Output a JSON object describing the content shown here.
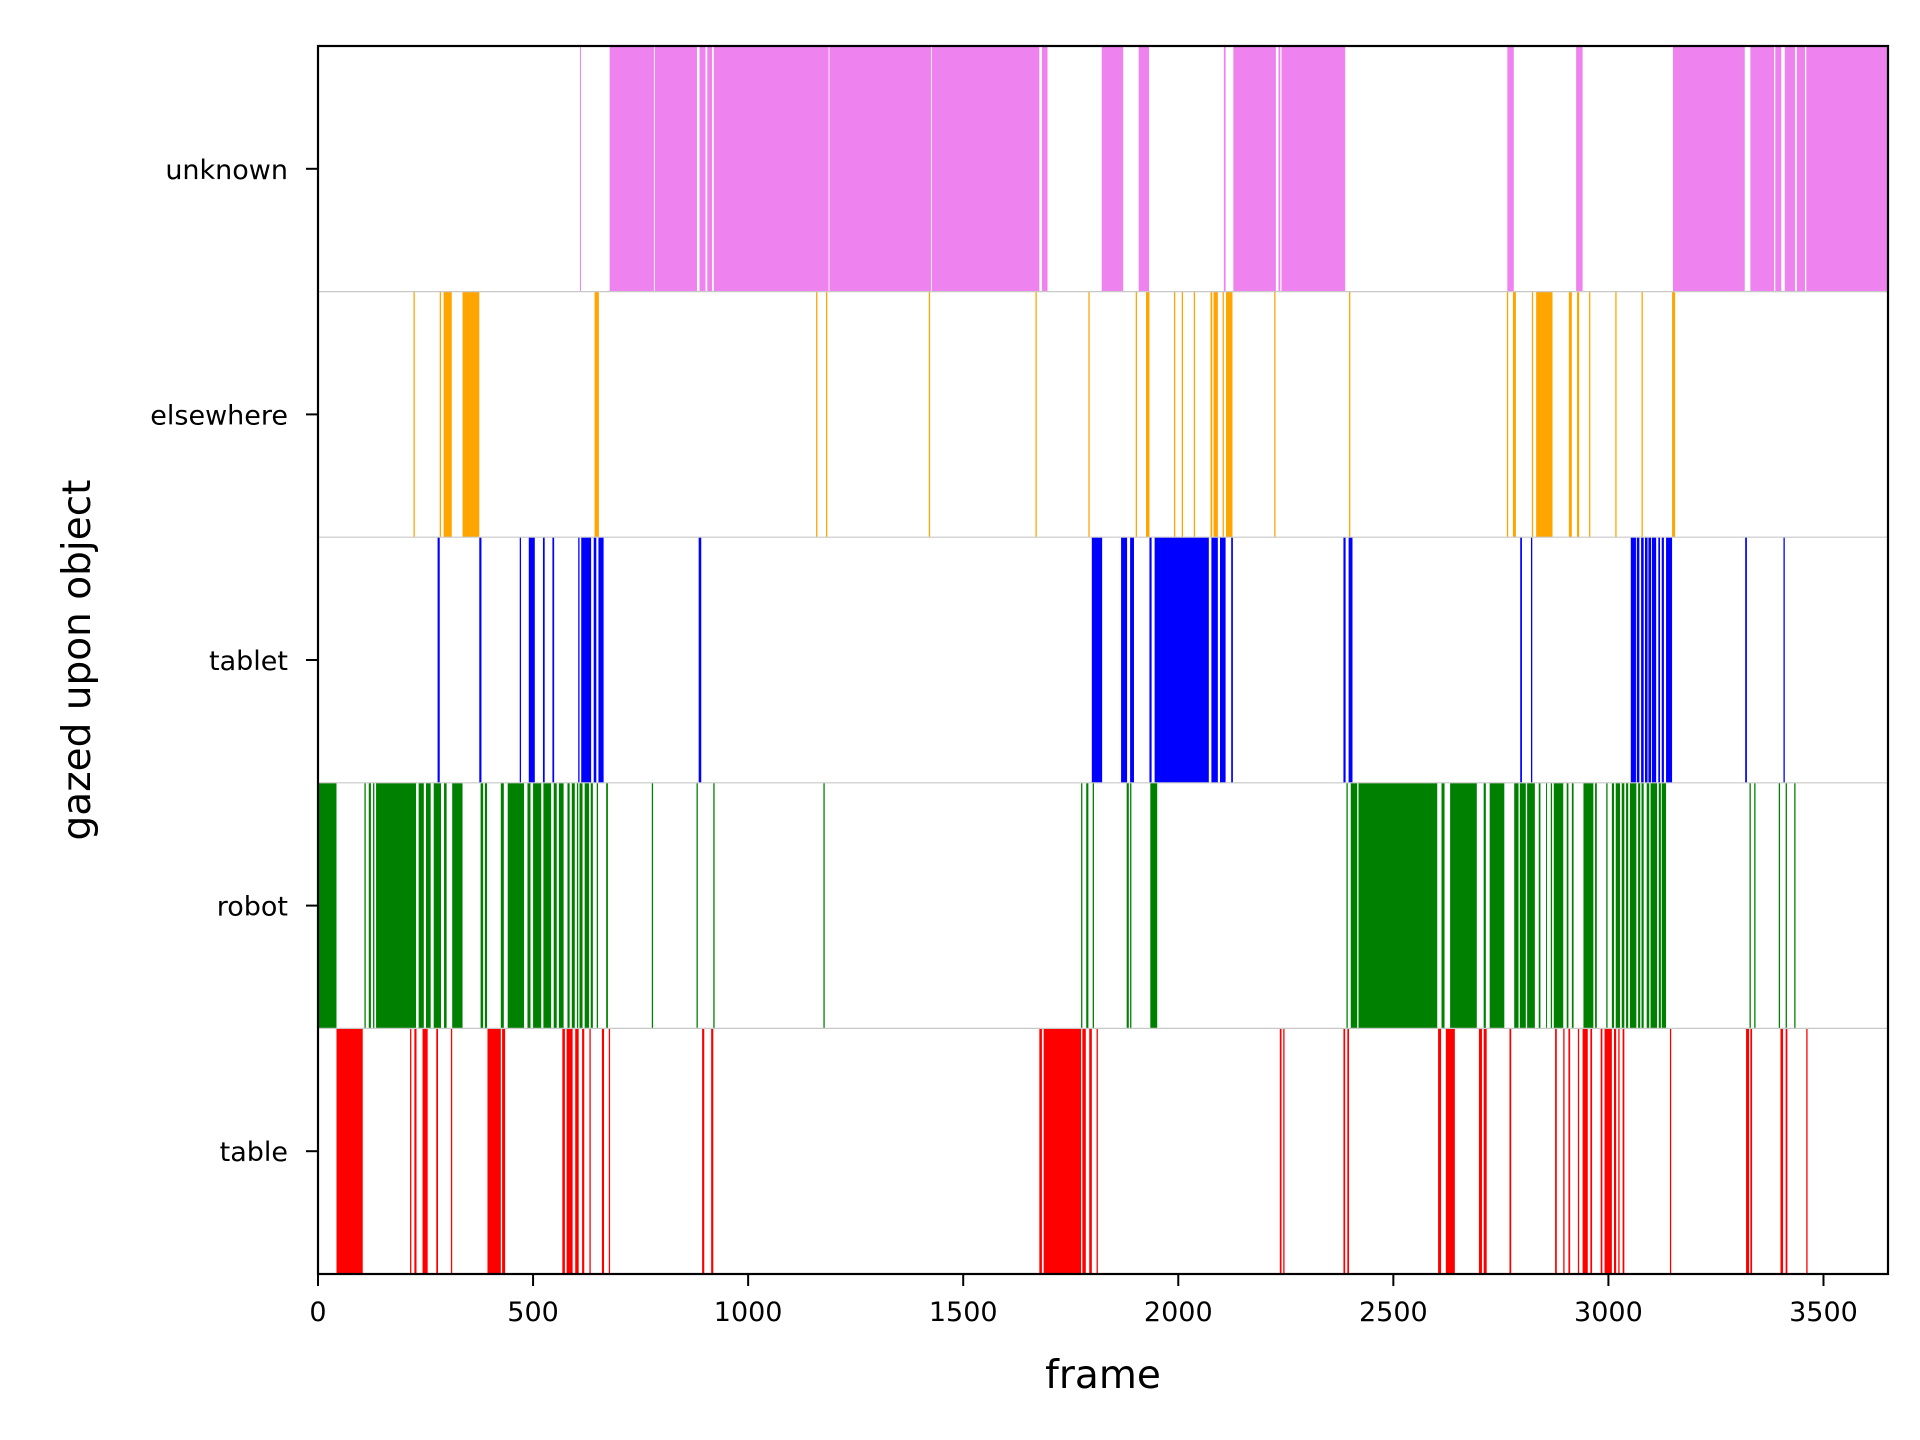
{
  "chart_data": {
    "type": "event-raster",
    "title": "",
    "xlabel": "frame",
    "ylabel": "gazed upon object",
    "xlim": [
      0,
      3650
    ],
    "xticks": [
      0,
      500,
      1000,
      1500,
      2000,
      2500,
      3000,
      3500
    ],
    "xtick_labels": [
      "0",
      "500",
      "1000",
      "1500",
      "2000",
      "2500",
      "3000",
      "3500"
    ],
    "categories": [
      "unknown",
      "elsewhere",
      "tablet",
      "robot",
      "table"
    ],
    "grid": "row separators only",
    "series": [
      {
        "name": "unknown",
        "color": "#ee82ee",
        "intervals": [
          [
            609,
            611
          ],
          [
            678,
            781
          ],
          [
            783,
            881
          ],
          [
            887,
            901
          ],
          [
            905,
            916
          ],
          [
            920,
            1187
          ],
          [
            1189,
            1425
          ],
          [
            1427,
            1677
          ],
          [
            1683,
            1696
          ],
          [
            1822,
            1872
          ],
          [
            1908,
            1932
          ],
          [
            2106,
            2110
          ],
          [
            2128,
            2227
          ],
          [
            2233,
            2237
          ],
          [
            2240,
            2388
          ],
          [
            2765,
            2780
          ],
          [
            2925,
            2940
          ],
          [
            3150,
            3317
          ],
          [
            3330,
            3385
          ],
          [
            3388,
            3402
          ],
          [
            3410,
            3434
          ],
          [
            3438,
            3457
          ],
          [
            3460,
            3650
          ]
        ]
      },
      {
        "name": "elsewhere",
        "color": "#ffa500",
        "intervals": [
          [
            222,
            225
          ],
          [
            283,
            286
          ],
          [
            292,
            311
          ],
          [
            336,
            375
          ],
          [
            643,
            653
          ],
          [
            1158,
            1161
          ],
          [
            1181,
            1184
          ],
          [
            1420,
            1423
          ],
          [
            1668,
            1671
          ],
          [
            1791,
            1794
          ],
          [
            1901,
            1904
          ],
          [
            1925,
            1933
          ],
          [
            1990,
            1993
          ],
          [
            2008,
            2011
          ],
          [
            2036,
            2039
          ],
          [
            2075,
            2079
          ],
          [
            2082,
            2092
          ],
          [
            2103,
            2106
          ],
          [
            2111,
            2126
          ],
          [
            2223,
            2226
          ],
          [
            2397,
            2400
          ],
          [
            2764,
            2767
          ],
          [
            2778,
            2785
          ],
          [
            2822,
            2825
          ],
          [
            2832,
            2870
          ],
          [
            2908,
            2915
          ],
          [
            2927,
            2932
          ],
          [
            2955,
            2958
          ],
          [
            3016,
            3019
          ],
          [
            3077,
            3080
          ],
          [
            3148,
            3155
          ]
        ]
      },
      {
        "name": "tablet",
        "color": "#0000ff",
        "intervals": [
          [
            278,
            283
          ],
          [
            375,
            380
          ],
          [
            469,
            472
          ],
          [
            490,
            504
          ],
          [
            523,
            527
          ],
          [
            545,
            549
          ],
          [
            605,
            608
          ],
          [
            612,
            635
          ],
          [
            641,
            647
          ],
          [
            652,
            664
          ],
          [
            885,
            891
          ],
          [
            1799,
            1823
          ],
          [
            1867,
            1881
          ],
          [
            1888,
            1897
          ],
          [
            1933,
            1938
          ],
          [
            1945,
            2071
          ],
          [
            2077,
            2092
          ],
          [
            2097,
            2110
          ],
          [
            2123,
            2127
          ],
          [
            2384,
            2389
          ],
          [
            2396,
            2405
          ],
          [
            2795,
            2799
          ],
          [
            2820,
            2823
          ],
          [
            3052,
            3064
          ],
          [
            3066,
            3072
          ],
          [
            3076,
            3082
          ],
          [
            3085,
            3091
          ],
          [
            3093,
            3099
          ],
          [
            3101,
            3111
          ],
          [
            3116,
            3120
          ],
          [
            3124,
            3129
          ],
          [
            3134,
            3148
          ],
          [
            3318,
            3322
          ],
          [
            3407,
            3410
          ]
        ]
      },
      {
        "name": "robot",
        "color": "#008000",
        "intervals": [
          [
            0,
            43
          ],
          [
            108,
            111
          ],
          [
            118,
            123
          ],
          [
            128,
            131
          ],
          [
            135,
            228
          ],
          [
            234,
            246
          ],
          [
            251,
            262
          ],
          [
            269,
            286
          ],
          [
            293,
            299
          ],
          [
            312,
            336
          ],
          [
            378,
            384
          ],
          [
            388,
            393
          ],
          [
            425,
            432
          ],
          [
            441,
            479
          ],
          [
            487,
            494
          ],
          [
            500,
            519
          ],
          [
            524,
            542
          ],
          [
            548,
            555
          ],
          [
            560,
            571
          ],
          [
            580,
            585
          ],
          [
            590,
            597
          ],
          [
            602,
            605
          ],
          [
            608,
            615
          ],
          [
            620,
            630
          ],
          [
            634,
            639
          ],
          [
            648,
            651
          ],
          [
            670,
            674
          ],
          [
            776,
            779
          ],
          [
            880,
            883
          ],
          [
            919,
            922
          ],
          [
            1175,
            1178
          ],
          [
            1774,
            1777
          ],
          [
            1786,
            1791
          ],
          [
            1801,
            1804
          ],
          [
            1880,
            1885
          ],
          [
            1888,
            1891
          ],
          [
            1935,
            1951
          ],
          [
            2391,
            2394
          ],
          [
            2401,
            2416
          ],
          [
            2419,
            2602
          ],
          [
            2612,
            2619
          ],
          [
            2632,
            2694
          ],
          [
            2710,
            2715
          ],
          [
            2724,
            2758
          ],
          [
            2781,
            2791
          ],
          [
            2794,
            2808
          ],
          [
            2811,
            2829
          ],
          [
            2838,
            2842
          ],
          [
            2855,
            2857
          ],
          [
            2866,
            2869
          ],
          [
            2873,
            2895
          ],
          [
            2903,
            2907
          ],
          [
            2915,
            2919
          ],
          [
            2942,
            2965
          ],
          [
            2969,
            2973
          ],
          [
            2995,
            2998
          ],
          [
            3008,
            3013
          ],
          [
            3017,
            3027
          ],
          [
            3031,
            3037
          ],
          [
            3041,
            3046
          ],
          [
            3050,
            3065
          ],
          [
            3069,
            3074
          ],
          [
            3077,
            3082
          ],
          [
            3089,
            3095
          ],
          [
            3098,
            3113
          ],
          [
            3117,
            3122
          ],
          [
            3124,
            3134
          ],
          [
            3328,
            3331
          ],
          [
            3339,
            3342
          ],
          [
            3396,
            3399
          ],
          [
            3412,
            3415
          ],
          [
            3432,
            3435
          ]
        ]
      },
      {
        "name": "table",
        "color": "#ff0000",
        "intervals": [
          [
            43,
            104
          ],
          [
            214,
            217
          ],
          [
            224,
            229
          ],
          [
            243,
            255
          ],
          [
            275,
            279
          ],
          [
            309,
            312
          ],
          [
            394,
            425
          ],
          [
            428,
            435
          ],
          [
            568,
            574
          ],
          [
            578,
            592
          ],
          [
            598,
            606
          ],
          [
            614,
            619
          ],
          [
            631,
            634
          ],
          [
            660,
            665
          ],
          [
            676,
            679
          ],
          [
            893,
            898
          ],
          [
            914,
            919
          ],
          [
            1677,
            1683
          ],
          [
            1687,
            1774
          ],
          [
            1777,
            1785
          ],
          [
            1793,
            1799
          ],
          [
            1810,
            1813
          ],
          [
            2236,
            2240
          ],
          [
            2244,
            2247
          ],
          [
            2384,
            2388
          ],
          [
            2393,
            2397
          ],
          [
            2604,
            2611
          ],
          [
            2622,
            2643
          ],
          [
            2699,
            2706
          ],
          [
            2710,
            2717
          ],
          [
            2770,
            2774
          ],
          [
            2876,
            2880
          ],
          [
            2895,
            2898
          ],
          [
            2907,
            2911
          ],
          [
            2929,
            2932
          ],
          [
            2940,
            2952
          ],
          [
            2958,
            2962
          ],
          [
            2982,
            2986
          ],
          [
            2991,
            3008
          ],
          [
            3013,
            3018
          ],
          [
            3023,
            3026
          ],
          [
            3033,
            3037
          ],
          [
            3143,
            3146
          ],
          [
            3320,
            3327
          ],
          [
            3330,
            3334
          ],
          [
            3400,
            3406
          ],
          [
            3412,
            3416
          ],
          [
            3460,
            3463
          ]
        ]
      }
    ]
  }
}
